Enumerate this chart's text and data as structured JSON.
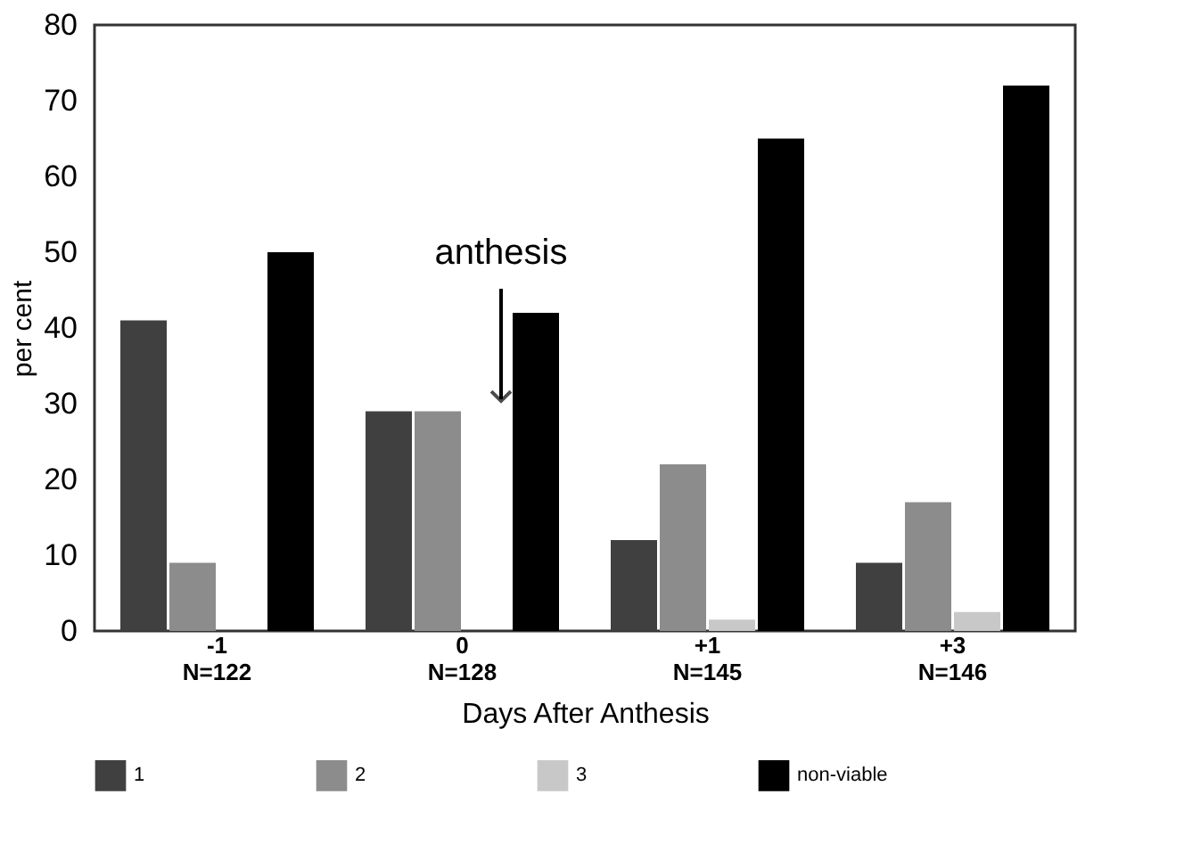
{
  "chart_data": {
    "type": "bar",
    "xlabel": "Days After Anthesis",
    "ylabel": "per cent",
    "categories": [
      "-1\nN=122",
      "0\nN=128",
      "+1\nN=145",
      "+3\nN=146"
    ],
    "series": [
      {
        "name": "1",
        "color": "#404040",
        "values": [
          41,
          29,
          12,
          9
        ]
      },
      {
        "name": "2",
        "color": "#8c8c8c",
        "values": [
          9,
          29,
          22,
          17
        ]
      },
      {
        "name": "3",
        "color": "#c8c8c8",
        "values": [
          null,
          null,
          1.5,
          2.5
        ]
      },
      {
        "name": "non-viable",
        "color": "#000000",
        "values": [
          50,
          42,
          65,
          72
        ]
      }
    ],
    "ylim": [
      0,
      80
    ],
    "yticks": [
      0,
      10,
      20,
      30,
      40,
      50,
      60,
      70,
      80
    ],
    "grid": false,
    "legend": "bottom",
    "annotations": [
      "anthesis"
    ]
  }
}
